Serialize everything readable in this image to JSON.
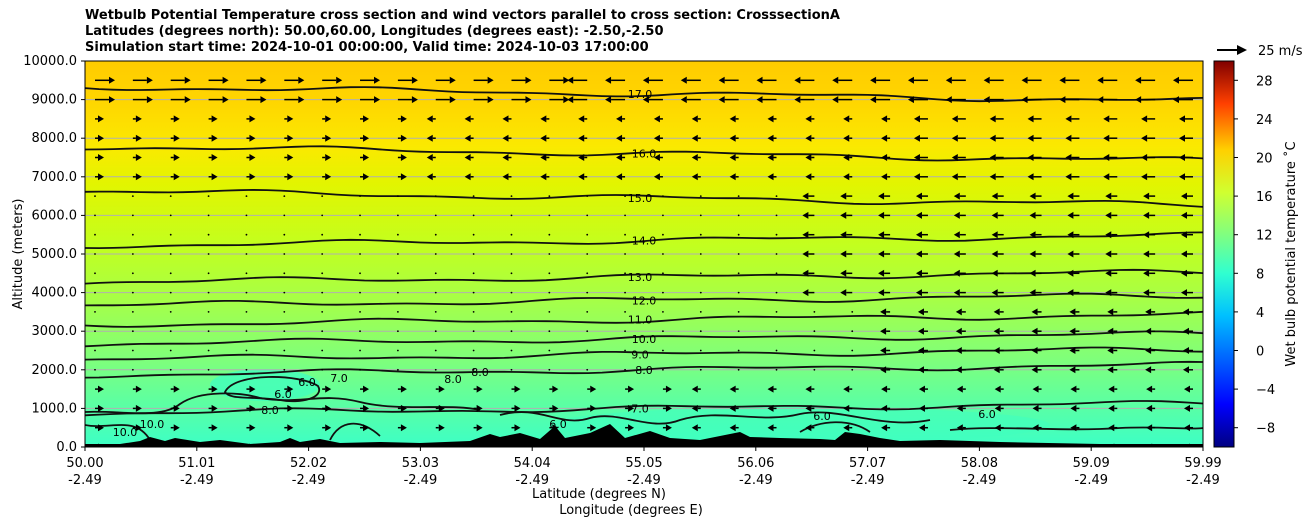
{
  "title": {
    "line1": "Wetbulb Potential Temperature cross section and wind vectors parallel to cross section: CrosssectionA",
    "line2": "Latitudes (degrees north): 50.00,60.00, Longitudes (degrees east): -2.50,-2.50",
    "line3": "Simulation start time: 2024-10-01 00:00:00, Valid time: 2024-10-03 17:00:00"
  },
  "chart_data": {
    "type": "contourf",
    "ylabel": "Altitude (meters)",
    "xlabel_lat": "Latitude (degrees N)",
    "xlabel_lon": "Longitude (degrees E)",
    "ylim": [
      0,
      10000
    ],
    "y_ticks": [
      "0.0",
      "1000.0",
      "2000.0",
      "3000.0",
      "4000.0",
      "5000.0",
      "6000.0",
      "7000.0",
      "8000.0",
      "9000.0",
      "10000.0"
    ],
    "x_ticks": [
      {
        "lat": "50.00",
        "lon": "-2.49"
      },
      {
        "lat": "51.01",
        "lon": "-2.49"
      },
      {
        "lat": "52.02",
        "lon": "-2.49"
      },
      {
        "lat": "53.03",
        "lon": "-2.49"
      },
      {
        "lat": "54.04",
        "lon": "-2.49"
      },
      {
        "lat": "55.05",
        "lon": "-2.49"
      },
      {
        "lat": "56.06",
        "lon": "-2.49"
      },
      {
        "lat": "57.07",
        "lon": "-2.49"
      },
      {
        "lat": "58.08",
        "lon": "-2.49"
      },
      {
        "lat": "59.09",
        "lon": "-2.49"
      },
      {
        "lat": "59.99",
        "lon": "-2.49"
      }
    ],
    "contours": [
      {
        "label": "17.0",
        "alt": 9150
      },
      {
        "label": "16.0",
        "alt": 7600
      },
      {
        "label": "15.0",
        "alt": 6450
      },
      {
        "label": "14.0",
        "alt": 5350
      },
      {
        "label": "13.0",
        "alt": 4400
      },
      {
        "label": "12.0",
        "alt": 3800
      },
      {
        "label": "11.0",
        "alt": 3300
      },
      {
        "label": "10.0",
        "alt": 2800
      },
      {
        "label": "9.0",
        "alt": 2400
      },
      {
        "label": "8.0",
        "alt": 2000
      },
      {
        "label": "7.0",
        "alt": 1000
      }
    ],
    "low_labels": [
      "8.0",
      "6.0",
      "6.0",
      "7.0",
      "8.0",
      "8.0",
      "10.0",
      "10.0",
      "6.0",
      "6.0",
      "6.0"
    ],
    "colorbar": {
      "label": "Wet bulb potential temperature ˚C",
      "min": -10,
      "max": 30,
      "ticks": [
        "-8",
        "-4",
        "0",
        "4",
        "8",
        "12",
        "16",
        "20",
        "24",
        "28"
      ]
    },
    "quiver_key": {
      "label": "25 m/s",
      "value": 25
    }
  }
}
